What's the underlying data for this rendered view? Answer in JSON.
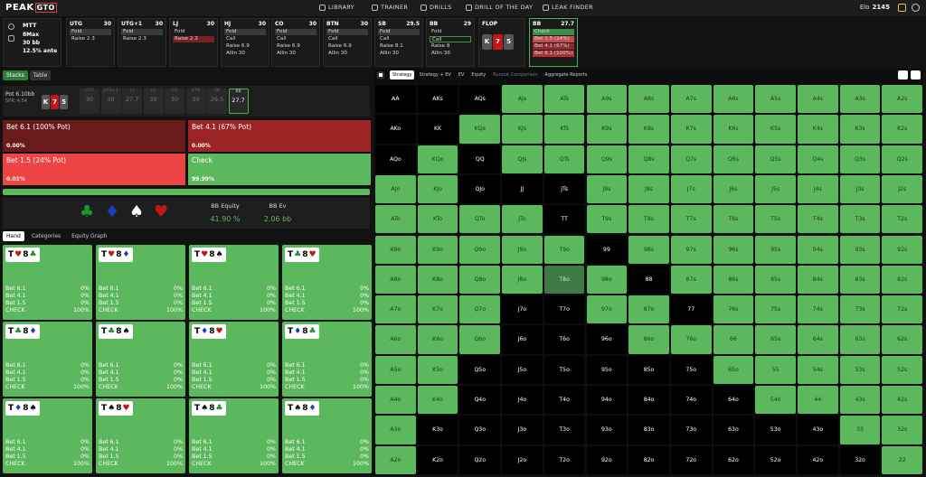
{
  "app": {
    "logo_text": "PEAK",
    "logo_box": "GTO"
  },
  "nav": [
    "LIBRARY",
    "TRAINER",
    "DRILLS",
    "DRILL OF THE DAY",
    "LEAK FINDER"
  ],
  "elo": {
    "label": "Elo",
    "value": "2145"
  },
  "setup": {
    "format": "MTT",
    "max": "8Max",
    "stack": "30 bb",
    "ante": "12.5% ante"
  },
  "positions": [
    {
      "name": "UTG",
      "stack": "30",
      "actions": [
        {
          "t": "Fold",
          "k": "fold"
        },
        {
          "t": "Raise 2.3",
          "k": ""
        }
      ]
    },
    {
      "name": "UTG+1",
      "stack": "30",
      "actions": [
        {
          "t": "Fold",
          "k": "fold"
        },
        {
          "t": "Raise 2.3",
          "k": ""
        }
      ]
    },
    {
      "name": "LJ",
      "stack": "30",
      "actions": [
        {
          "t": "Fold",
          "k": ""
        },
        {
          "t": "Raise 2.3",
          "k": "raise"
        }
      ]
    },
    {
      "name": "HJ",
      "stack": "30",
      "actions": [
        {
          "t": "Fold",
          "k": "fold"
        },
        {
          "t": "Call",
          "k": ""
        },
        {
          "t": "Raise 6.9",
          "k": ""
        },
        {
          "t": "Allin 30",
          "k": ""
        }
      ]
    },
    {
      "name": "CO",
      "stack": "30",
      "actions": [
        {
          "t": "Fold",
          "k": "fold"
        },
        {
          "t": "Call",
          "k": ""
        },
        {
          "t": "Raise 6.9",
          "k": ""
        },
        {
          "t": "Allin 30",
          "k": ""
        }
      ]
    },
    {
      "name": "BTN",
      "stack": "30",
      "actions": [
        {
          "t": "Fold",
          "k": "fold"
        },
        {
          "t": "Call",
          "k": ""
        },
        {
          "t": "Raise 6.9",
          "k": ""
        },
        {
          "t": "Allin 30",
          "k": ""
        }
      ]
    },
    {
      "name": "SB",
      "stack": "29.5",
      "actions": [
        {
          "t": "Fold",
          "k": "fold"
        },
        {
          "t": "Call",
          "k": ""
        },
        {
          "t": "Raise 8.1",
          "k": ""
        },
        {
          "t": "Allin 30",
          "k": ""
        }
      ]
    },
    {
      "name": "BB",
      "stack": "29",
      "actions": [
        {
          "t": "Fold",
          "k": ""
        },
        {
          "t": "Call",
          "k": "call"
        },
        {
          "t": "Raise 8",
          "k": ""
        },
        {
          "t": "Allin 30",
          "k": ""
        }
      ]
    }
  ],
  "flop": {
    "label": "FLOP",
    "cards": [
      "K",
      "7",
      "5"
    ]
  },
  "bb_action": {
    "name": "BB",
    "stack": "27.7",
    "actions": [
      {
        "t": "Check",
        "k": "g"
      },
      {
        "t": "Bet 1.5 (24%)",
        "k": "r1"
      },
      {
        "t": "Bet 4.1 (67%)",
        "k": "r2"
      },
      {
        "t": "Bet 6.1 (100%)",
        "k": "r3"
      }
    ]
  },
  "left_tabs": [
    "Stacks",
    "Table"
  ],
  "pot": {
    "label": "Pot",
    "value": "6.10bb",
    "spr": "SPR: 4.54",
    "cards": [
      "K",
      "7",
      "5"
    ]
  },
  "stacks": [
    {
      "p": "UTG",
      "v": "30"
    },
    {
      "p": "UTG+1",
      "v": "30"
    },
    {
      "p": "LJ",
      "v": "27.7"
    },
    {
      "p": "HJ",
      "v": "30"
    },
    {
      "p": "CO",
      "v": "30"
    },
    {
      "p": "BTN",
      "v": "30"
    },
    {
      "p": "SB",
      "v": "29.5"
    },
    {
      "p": "BB",
      "v": "27.7"
    }
  ],
  "options": [
    {
      "label": "Bet 6.1 (100% Pot)",
      "pct": "0.00%",
      "color": "#6b1a1a"
    },
    {
      "label": "Bet 4.1 (67% Pot)",
      "pct": "0.00%",
      "color": "#9c2424"
    },
    {
      "label": "Bet 1.5 (24% Pot)",
      "pct": "0.01%",
      "color": "#ee4444"
    },
    {
      "label": "Check",
      "pct": "99.99%",
      "color": "#5cb85c"
    }
  ],
  "equity": {
    "eq_label": "BB Equity",
    "eq_value": "41.90 %",
    "ev_label": "BB Ev",
    "ev_value": "2.06 bb"
  },
  "subtabs": [
    "Hand",
    "Categories",
    "Equity Graph"
  ],
  "hand_rows": [
    "Bet 6.1",
    "Bet 4.1",
    "Bet 1.5",
    "CHECK"
  ],
  "hand_cards": [
    {
      "a": "T",
      "as": "h",
      "b": "8",
      "bs": "c",
      "v": [
        "0%",
        "0%",
        "0%",
        "100%"
      ]
    },
    {
      "a": "T",
      "as": "h",
      "b": "8",
      "bs": "d",
      "v": [
        "0%",
        "0%",
        "0%",
        "100%"
      ]
    },
    {
      "a": "T",
      "as": "h",
      "b": "8",
      "bs": "s",
      "v": [
        "0%",
        "0%",
        "0%",
        "100%"
      ]
    },
    {
      "a": "T",
      "as": "c",
      "b": "8",
      "bs": "h",
      "v": [
        "0%",
        "0%",
        "0%",
        "100%"
      ]
    },
    {
      "a": "T",
      "as": "c",
      "b": "8",
      "bs": "d",
      "v": [
        "0%",
        "0%",
        "0%",
        "100%"
      ]
    },
    {
      "a": "T",
      "as": "c",
      "b": "8",
      "bs": "s",
      "v": [
        "0%",
        "0%",
        "0%",
        "100%"
      ]
    },
    {
      "a": "T",
      "as": "d",
      "b": "8",
      "bs": "h",
      "v": [
        "0%",
        "0%",
        "0%",
        "100%"
      ]
    },
    {
      "a": "T",
      "as": "d",
      "b": "8",
      "bs": "c",
      "v": [
        "0%",
        "0%",
        "0%",
        "100%"
      ]
    },
    {
      "a": "T",
      "as": "d",
      "b": "8",
      "bs": "s",
      "v": [
        "0%",
        "0%",
        "0%",
        "100%"
      ]
    },
    {
      "a": "T",
      "as": "s",
      "b": "8",
      "bs": "h",
      "v": [
        "0%",
        "0%",
        "0%",
        "100%"
      ]
    },
    {
      "a": "T",
      "as": "s",
      "b": "8",
      "bs": "c",
      "v": [
        "0%",
        "0%",
        "0%",
        "100%"
      ]
    },
    {
      "a": "T",
      "as": "s",
      "b": "8",
      "bs": "d",
      "v": [
        "0%",
        "0%",
        "0%",
        "100%"
      ]
    }
  ],
  "right_tabs": [
    "Strategy",
    "Strategy + EV",
    "EV",
    "Equity",
    "Runout Comparison",
    "Aggregate Reports"
  ],
  "ranks": [
    "A",
    "K",
    "Q",
    "J",
    "T",
    "9",
    "8",
    "7",
    "6",
    "5",
    "4",
    "3",
    "2"
  ],
  "matrix_black": [
    "AA",
    "AKs",
    "AQs",
    "KK",
    "QQ",
    "JJ",
    "JTs",
    "TT",
    "99",
    "88",
    "77",
    "AKo",
    "AQo",
    "QJo",
    "J7o",
    "J6o",
    "J5o",
    "J4o",
    "J3o",
    "J2o",
    "T7o",
    "T6o",
    "T5o",
    "T4o",
    "T3o",
    "T2o",
    "96o",
    "95o",
    "94o",
    "93o",
    "92o",
    "85o",
    "84o",
    "83o",
    "82o",
    "75o",
    "74o",
    "73o",
    "72o",
    "64o",
    "63o",
    "62o",
    "53o",
    "52o",
    "43o",
    "42o",
    "32o",
    "K3o",
    "K2o",
    "Q5o",
    "Q4o",
    "Q3o",
    "Q2o"
  ],
  "matrix_dark": [
    "T8o"
  ]
}
